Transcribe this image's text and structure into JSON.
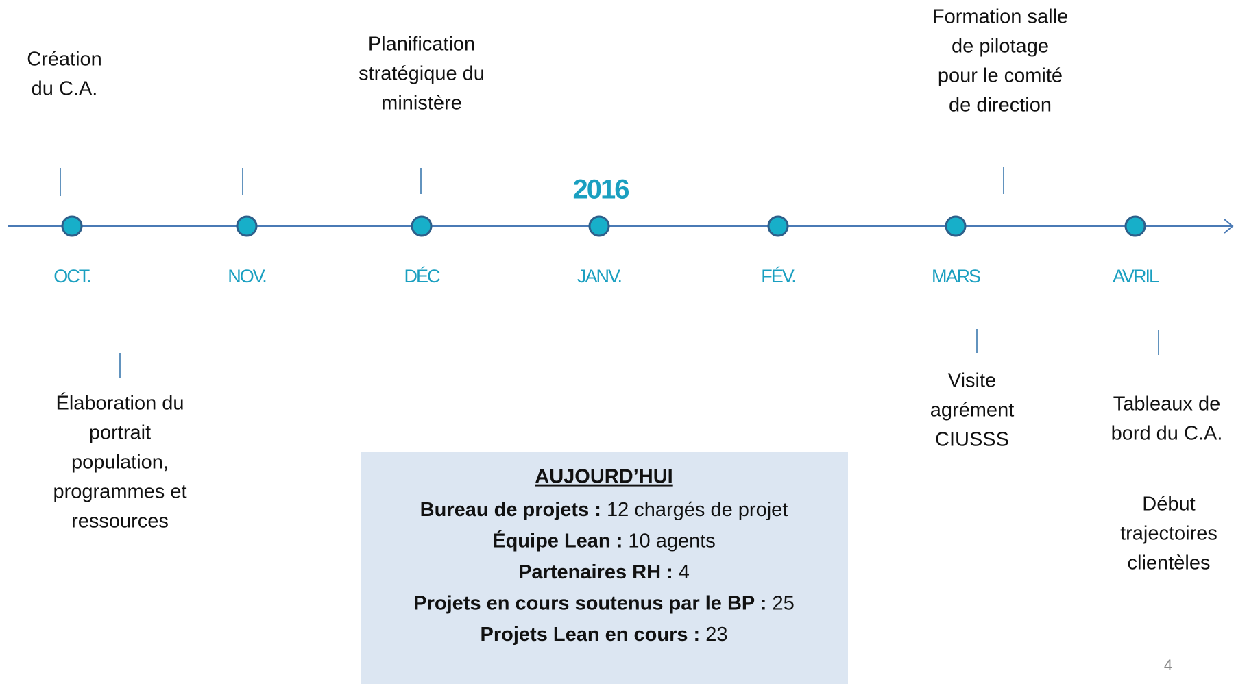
{
  "year": "2016",
  "months": [
    "OCT.",
    "NOV.",
    "DÉC",
    "JANV.",
    "FÉV.",
    "MARS",
    "AVRIL"
  ],
  "events_above": [
    {
      "lines": [
        "Création",
        "du C.A."
      ]
    },
    {
      "lines": [
        "Planification",
        "stratégique du",
        "ministère"
      ]
    },
    {
      "lines": [
        "Formation salle",
        "de pilotage",
        "pour le comité",
        "de direction"
      ]
    }
  ],
  "events_below": [
    {
      "lines": [
        "Élaboration du",
        "portrait",
        "population,",
        "programmes et",
        "ressources"
      ]
    },
    {
      "lines": [
        "Visite",
        "agrément",
        "CIUSSS"
      ]
    },
    {
      "lines": [
        "Tableaux de",
        "bord du C.A."
      ]
    },
    {
      "lines": [
        "Début",
        "trajectoires",
        "clientèles"
      ]
    }
  ],
  "today": {
    "title": "AUJOURD’HUI",
    "items": [
      {
        "label": "Bureau de projets :",
        "value": "12 chargés de projet"
      },
      {
        "label": "Équipe Lean :",
        "value": "10 agents"
      },
      {
        "label": "Partenaires RH :",
        "value": "4"
      },
      {
        "label": "Projets en cours  soutenus par le BP :",
        "value": "25"
      },
      {
        "label": "Projets Lean en cours :",
        "value": "23"
      }
    ]
  },
  "page_number": "4"
}
